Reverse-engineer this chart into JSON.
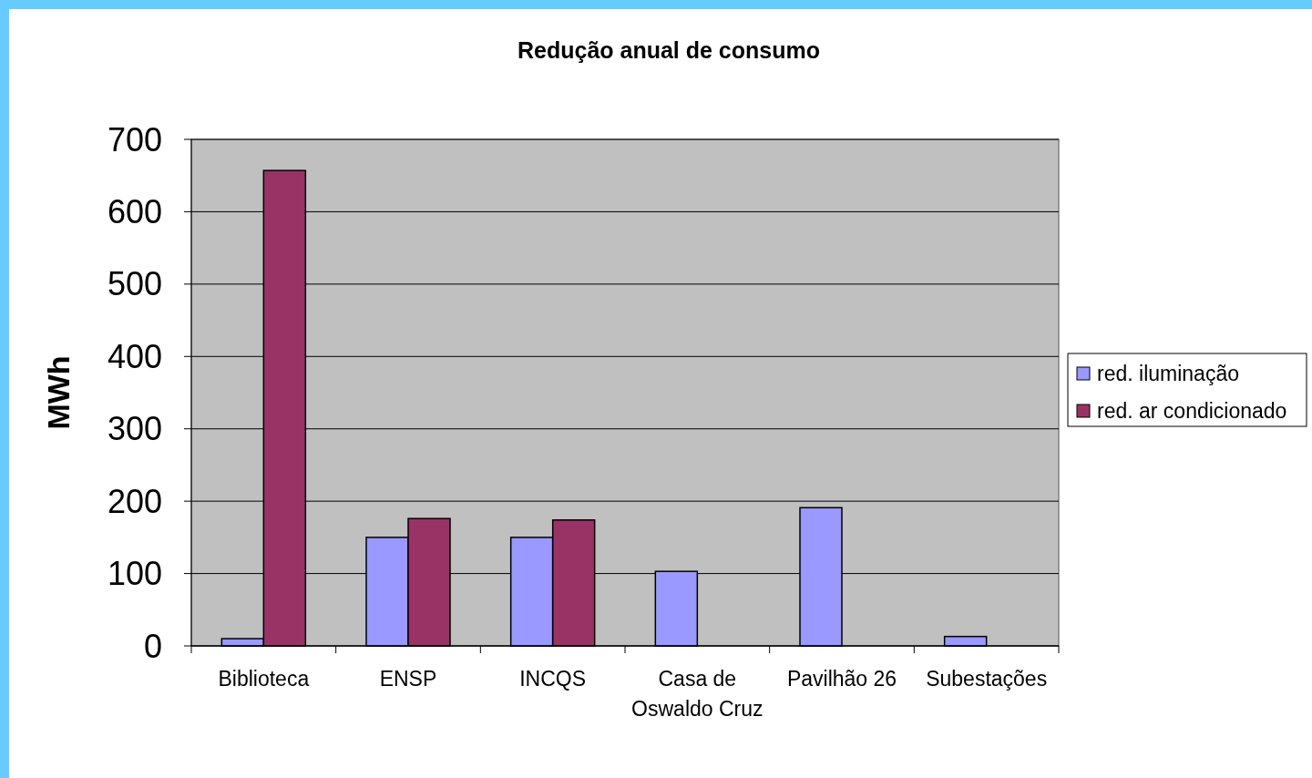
{
  "chart_data": {
    "type": "bar",
    "title": "Redução anual de consumo",
    "ylabel": "MWh",
    "categories": [
      "Biblioteca",
      "ENSP",
      "INCQS",
      "Casa de Oswaldo Cruz",
      "Pavilhão 26",
      "Subestações"
    ],
    "series": [
      {
        "name": "red. iluminação",
        "color": "#9999ff",
        "values": [
          10,
          150,
          150,
          103,
          191,
          13
        ]
      },
      {
        "name": "red. ar condicionado",
        "color": "#993366",
        "values": [
          657,
          176,
          174,
          null,
          null,
          null
        ]
      }
    ],
    "ylim": [
      0,
      700
    ],
    "yticks": [
      0,
      100,
      200,
      300,
      400,
      500,
      600,
      700
    ],
    "grid": "y",
    "legend": "right"
  }
}
